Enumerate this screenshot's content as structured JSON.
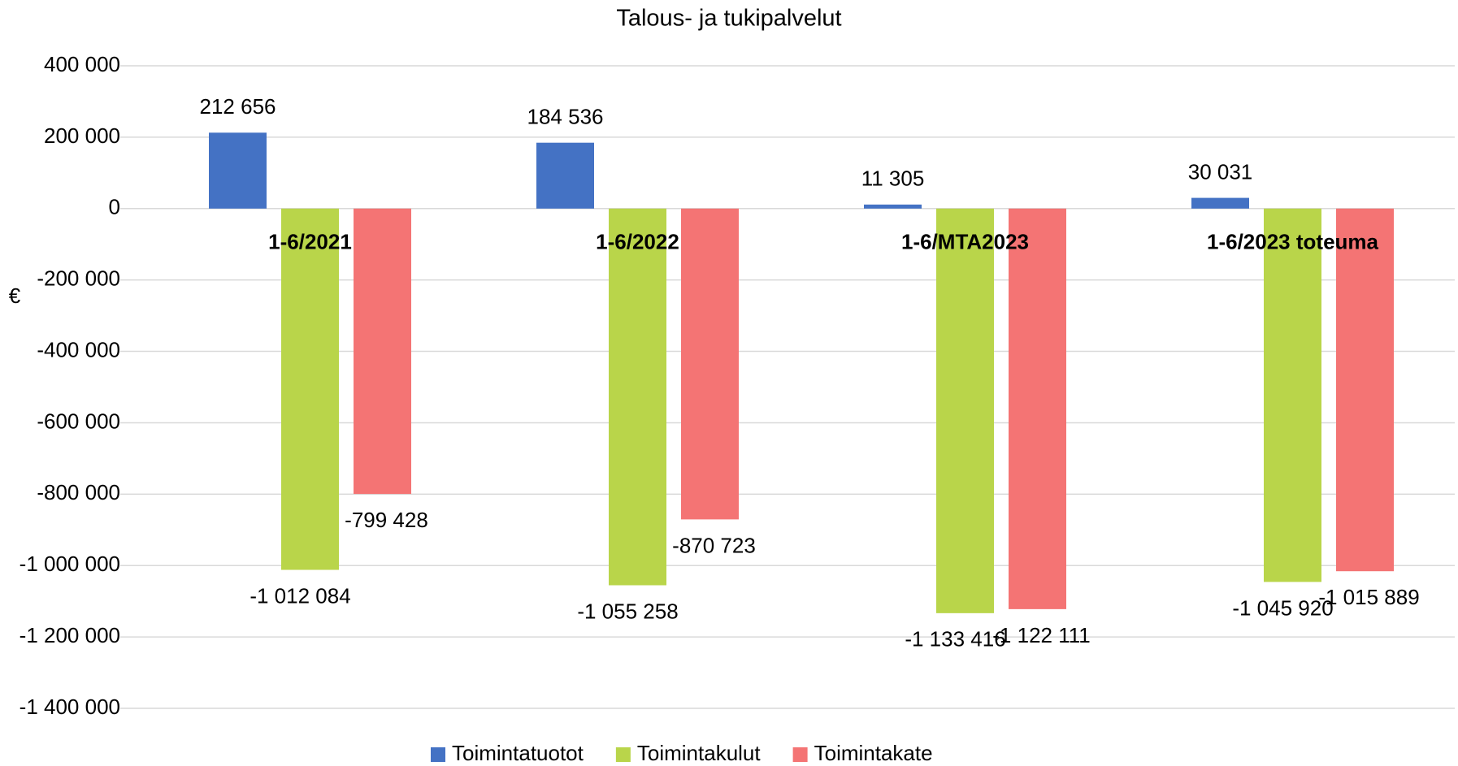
{
  "chart_data": {
    "type": "bar",
    "title": "Talous- ja tukipalvelut",
    "y_label": "€",
    "categories": [
      "1-6/2021",
      "1-6/2022",
      "1-6/MTA2023",
      "1-6/2023 toteuma"
    ],
    "series": [
      {
        "name": "Toimintatuotot",
        "color": "#4472c4",
        "values": [
          212656,
          184536,
          11305,
          30031
        ],
        "value_labels": [
          "212 656",
          "184 536",
          "11 305",
          "30 031"
        ]
      },
      {
        "name": "Toimintakulut",
        "color": "#b9d54a",
        "values": [
          -1012084,
          -1055258,
          -1133416,
          -1045920
        ],
        "value_labels": [
          "-1 012 084",
          "-1 055 258",
          "-1 133 416",
          "-1 045 920"
        ]
      },
      {
        "name": "Toimintakate",
        "color": "#f47474",
        "values": [
          -799428,
          -870723,
          -1122111,
          -1015889
        ],
        "value_labels": [
          "-799 428",
          "-870 723",
          "-1 122 111",
          "-1 015 889"
        ]
      }
    ],
    "ylim": [
      -1400000,
      400000
    ],
    "yticks": [
      {
        "value": -1400000,
        "label": "-1 400 000"
      },
      {
        "value": -1200000,
        "label": "-1 200 000"
      },
      {
        "value": -1000000,
        "label": "-1 000 000"
      },
      {
        "value": -800000,
        "label": "-800 000"
      },
      {
        "value": -600000,
        "label": "-600 000"
      },
      {
        "value": -400000,
        "label": "-400 000"
      },
      {
        "value": -200000,
        "label": "-200 000"
      },
      0,
      {
        "value": 200000,
        "label": "200 000"
      },
      {
        "value": 400000,
        "label": "400 000"
      }
    ],
    "grid": true,
    "legend": "bottom"
  }
}
